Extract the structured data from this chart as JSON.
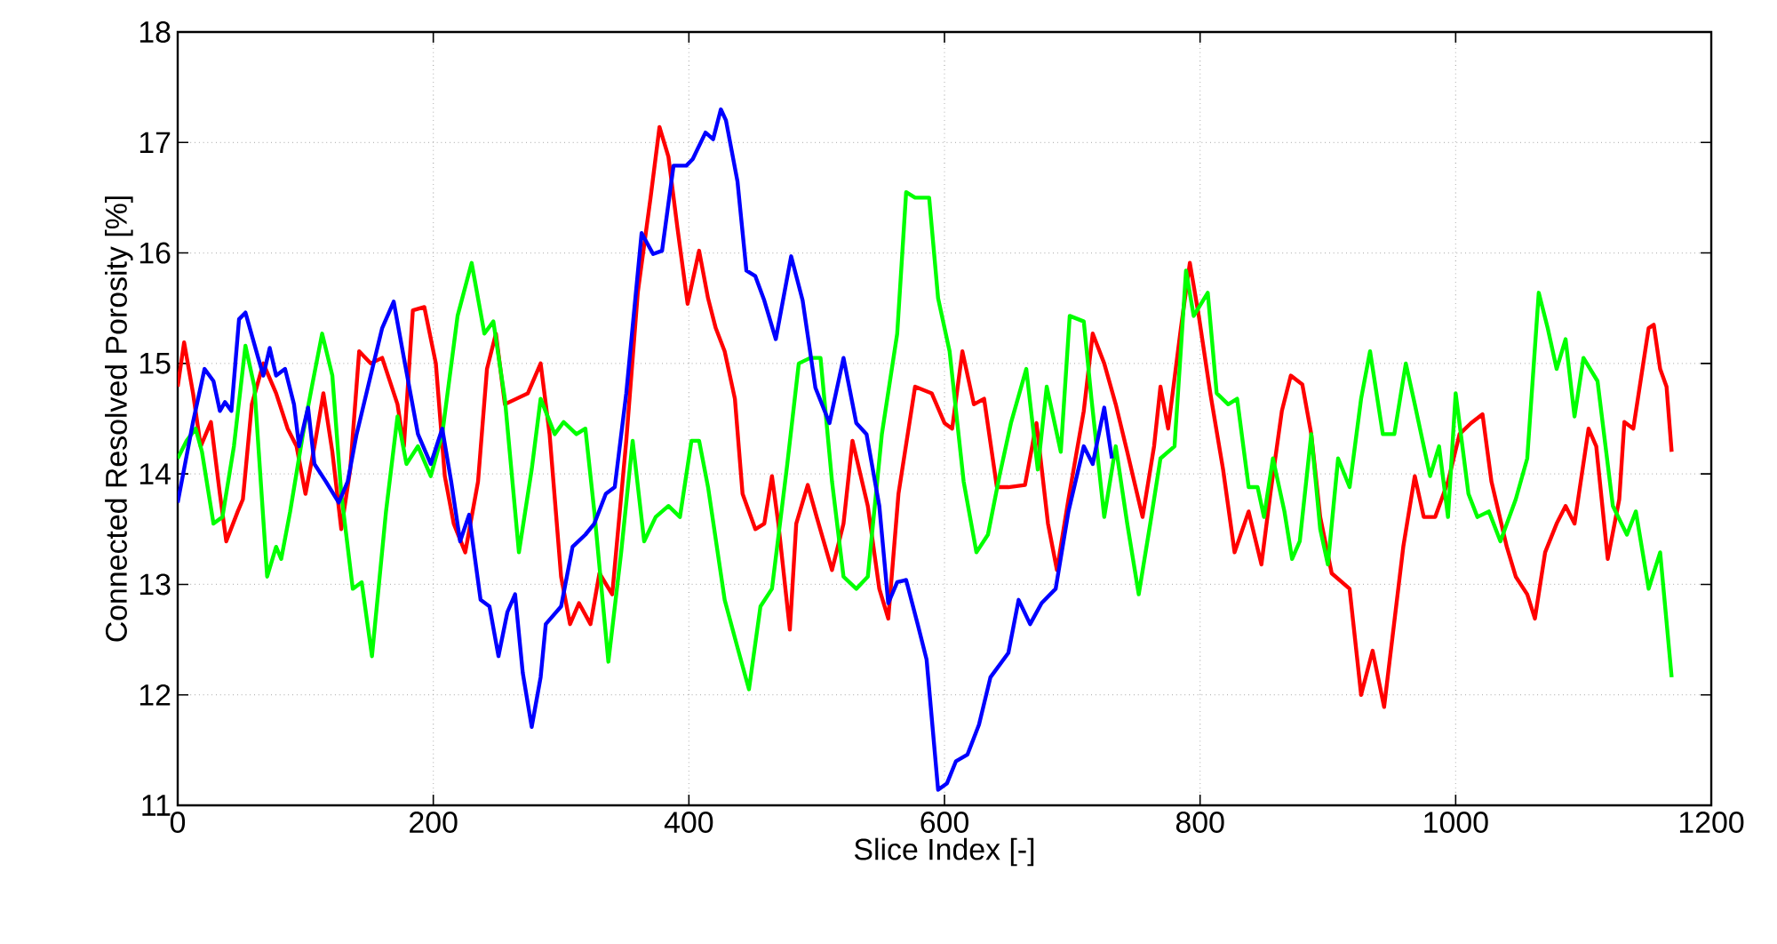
{
  "chart_data": {
    "type": "line",
    "xlabel": "Slice Index [-]",
    "ylabel": "Connected Resolved Porosity [%]",
    "xlim": [
      0,
      1200
    ],
    "ylim": [
      11,
      18
    ],
    "xticks": [
      0,
      200,
      400,
      600,
      800,
      1000,
      1200
    ],
    "yticks": [
      11,
      12,
      13,
      14,
      15,
      16,
      17,
      18
    ],
    "grid": true,
    "legend": false,
    "line_style": "solid",
    "marker": "none",
    "series": [
      {
        "color": "#ff0000",
        "x": [
          0,
          5,
          12,
          18,
          26,
          33,
          38,
          47,
          51,
          58,
          67,
          77,
          86,
          93,
          100,
          107,
          114,
          121,
          128,
          135,
          142,
          151,
          160,
          172,
          177,
          184,
          193,
          202,
          209,
          216,
          225,
          235,
          242,
          249,
          256,
          265,
          274,
          284,
          291,
          300,
          307,
          314,
          323,
          330,
          340,
          351,
          360,
          370,
          377,
          384,
          391,
          399,
          408,
          415,
          421,
          428,
          436,
          442,
          452,
          459,
          465,
          470,
          479,
          484,
          493,
          500,
          512,
          521,
          528,
          540,
          549,
          556,
          564,
          577,
          590,
          600,
          606,
          614,
          623,
          631,
          641,
          650,
          663,
          672,
          681,
          688,
          697,
          709,
          716,
          725,
          734,
          743,
          755,
          764,
          769,
          775,
          785,
          792,
          799,
          808,
          818,
          827,
          838,
          848,
          855,
          864,
          871,
          880,
          887,
          894,
          903,
          917,
          926,
          935,
          944,
          959,
          968,
          975,
          984,
          994,
          1003,
          1012,
          1021,
          1028,
          1040,
          1047,
          1056,
          1062,
          1070,
          1079,
          1086,
          1093,
          1104,
          1110,
          1119,
          1128,
          1132,
          1139,
          1151,
          1155,
          1160,
          1165,
          1169
        ],
        "values": [
          14.79,
          15.19,
          14.73,
          14.25,
          14.47,
          13.82,
          13.39,
          13.66,
          13.77,
          14.63,
          15.0,
          14.73,
          14.41,
          14.25,
          13.82,
          14.25,
          14.73,
          14.2,
          13.5,
          14.04,
          15.11,
          15.0,
          15.05,
          14.63,
          14.25,
          15.48,
          15.51,
          15.0,
          13.98,
          13.55,
          13.29,
          13.93,
          14.95,
          15.27,
          14.63,
          14.68,
          14.73,
          15.0,
          14.36,
          13.07,
          12.64,
          12.83,
          12.64,
          13.1,
          12.91,
          14.3,
          15.64,
          16.5,
          17.14,
          16.87,
          16.23,
          15.54,
          16.02,
          15.59,
          15.32,
          15.11,
          14.68,
          13.82,
          13.5,
          13.55,
          13.98,
          13.55,
          12.59,
          13.55,
          13.9,
          13.61,
          13.13,
          13.55,
          14.3,
          13.71,
          12.96,
          12.69,
          13.82,
          14.79,
          14.73,
          14.46,
          14.41,
          15.11,
          14.63,
          14.68,
          13.88,
          13.88,
          13.9,
          14.46,
          13.55,
          13.13,
          13.77,
          14.57,
          15.27,
          15.0,
          14.63,
          14.2,
          13.61,
          14.25,
          14.79,
          14.41,
          15.32,
          15.91,
          15.43,
          14.73,
          14.04,
          13.29,
          13.66,
          13.18,
          13.82,
          14.57,
          14.89,
          14.81,
          14.36,
          13.61,
          13.1,
          12.96,
          12.0,
          12.4,
          11.89,
          13.34,
          13.98,
          13.61,
          13.61,
          13.93,
          14.36,
          14.46,
          14.54,
          13.93,
          13.34,
          13.07,
          12.91,
          12.69,
          13.29,
          13.55,
          13.71,
          13.55,
          14.41,
          14.25,
          13.23,
          13.77,
          14.47,
          14.41,
          15.32,
          15.35,
          14.95,
          14.79,
          14.2
        ]
      },
      {
        "color": "#00ff00",
        "x": [
          0,
          7,
          14,
          19,
          28,
          35,
          44,
          53,
          60,
          70,
          77,
          81,
          88,
          98,
          105,
          113,
          121,
          128,
          137,
          144,
          152,
          163,
          172,
          179,
          188,
          198,
          207,
          219,
          230,
          240,
          247,
          256,
          267,
          277,
          284,
          295,
          302,
          312,
          319,
          326,
          337,
          347,
          356,
          365,
          374,
          384,
          393,
          402,
          408,
          415,
          428,
          438,
          447,
          456,
          465,
          477,
          486,
          495,
          503,
          512,
          521,
          531,
          540,
          551,
          563,
          570,
          577,
          588,
          595,
          604,
          615,
          625,
          634,
          643,
          652,
          664,
          673,
          680,
          691,
          698,
          709,
          715,
          725,
          734,
          743,
          752,
          761,
          769,
          780,
          789,
          795,
          806,
          813,
          822,
          829,
          838,
          845,
          850,
          857,
          866,
          872,
          878,
          887,
          894,
          900,
          908,
          917,
          926,
          933,
          943,
          952,
          961,
          968,
          980,
          987,
          994,
          1000,
          1010,
          1017,
          1026,
          1035,
          1047,
          1056,
          1065,
          1072,
          1079,
          1086,
          1093,
          1100,
          1111,
          1123,
          1134,
          1141,
          1151,
          1160,
          1169
        ],
        "values": [
          14.14,
          14.3,
          14.41,
          14.2,
          13.55,
          13.61,
          14.25,
          15.16,
          14.79,
          13.07,
          13.34,
          13.23,
          13.66,
          14.36,
          14.79,
          15.27,
          14.89,
          13.82,
          12.96,
          13.02,
          12.35,
          13.66,
          14.52,
          14.09,
          14.25,
          13.98,
          14.36,
          15.43,
          15.91,
          15.27,
          15.38,
          14.68,
          13.29,
          14.04,
          14.68,
          14.36,
          14.47,
          14.36,
          14.41,
          13.66,
          12.3,
          13.29,
          14.3,
          13.39,
          13.61,
          13.71,
          13.61,
          14.3,
          14.3,
          13.88,
          12.86,
          12.43,
          12.05,
          12.8,
          12.96,
          14.09,
          15.0,
          15.05,
          15.05,
          13.93,
          13.07,
          12.96,
          13.07,
          14.36,
          15.27,
          16.55,
          16.5,
          16.5,
          15.59,
          15.11,
          13.93,
          13.29,
          13.45,
          13.98,
          14.46,
          14.95,
          14.04,
          14.79,
          14.2,
          15.43,
          15.38,
          14.68,
          13.61,
          14.25,
          13.55,
          12.91,
          13.55,
          14.14,
          14.25,
          15.84,
          15.43,
          15.64,
          14.73,
          14.63,
          14.68,
          13.88,
          13.88,
          13.61,
          14.14,
          13.66,
          13.23,
          13.39,
          14.36,
          13.5,
          13.18,
          14.14,
          13.88,
          14.68,
          15.11,
          14.36,
          14.36,
          15.0,
          14.63,
          13.98,
          14.25,
          13.61,
          14.73,
          13.82,
          13.61,
          13.66,
          13.39,
          13.77,
          14.14,
          15.64,
          15.32,
          14.95,
          15.22,
          14.52,
          15.05,
          14.84,
          13.71,
          13.45,
          13.66,
          12.96,
          13.29,
          12.16
        ]
      },
      {
        "color": "#0000ff",
        "x": [
          0,
          12,
          21,
          28,
          33,
          37,
          42,
          48,
          53,
          63,
          67,
          72,
          77,
          84,
          91,
          95,
          102,
          107,
          116,
          126,
          133,
          140,
          151,
          160,
          169,
          177,
          188,
          198,
          207,
          214,
          221,
          228,
          237,
          244,
          251,
          258,
          264,
          270,
          277,
          284,
          288,
          300,
          309,
          319,
          326,
          335,
          342,
          351,
          363,
          372,
          379,
          388,
          398,
          403,
          413,
          419,
          425,
          429,
          438,
          445,
          452,
          459,
          468,
          480,
          489,
          499,
          510,
          521,
          531,
          539,
          549,
          556,
          563,
          570,
          579,
          586,
          595,
          602,
          609,
          618,
          627,
          636,
          650,
          658,
          667,
          676,
          687,
          697,
          709,
          716,
          725,
          731
        ],
        "values": [
          13.74,
          14.47,
          14.95,
          14.84,
          14.57,
          14.65,
          14.57,
          15.4,
          15.46,
          15.05,
          14.89,
          15.14,
          14.89,
          14.95,
          14.63,
          14.25,
          14.6,
          14.09,
          13.93,
          13.74,
          13.93,
          14.36,
          14.89,
          15.32,
          15.56,
          15.05,
          14.36,
          14.09,
          14.41,
          13.93,
          13.39,
          13.63,
          12.86,
          12.8,
          12.35,
          12.75,
          12.91,
          12.2,
          11.71,
          12.16,
          12.64,
          12.8,
          13.34,
          13.45,
          13.55,
          13.82,
          13.88,
          14.73,
          16.18,
          15.99,
          16.02,
          16.79,
          16.79,
          16.85,
          17.09,
          17.03,
          17.3,
          17.2,
          16.65,
          15.84,
          15.79,
          15.57,
          15.22,
          15.97,
          15.57,
          14.78,
          14.46,
          15.05,
          14.46,
          14.36,
          13.71,
          12.83,
          13.02,
          13.04,
          12.64,
          12.32,
          11.14,
          11.2,
          11.4,
          11.46,
          11.73,
          12.16,
          12.38,
          12.86,
          12.64,
          12.83,
          12.96,
          13.66,
          14.25,
          14.09,
          14.6,
          14.14
        ]
      }
    ]
  }
}
